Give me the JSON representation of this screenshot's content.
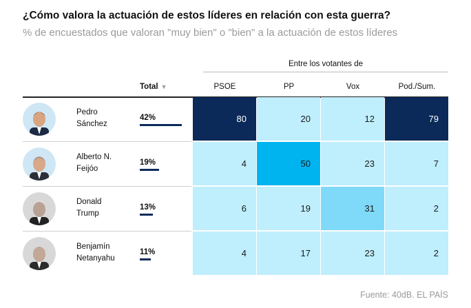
{
  "title": "¿Cómo valora la actuación de estos líderes en relación con esta guerra?",
  "subtitle": "% de encuestados que valoran \"muy bien\" o \"bien\" a la actuación de estos líderes",
  "group_label": "Entre los votantes de",
  "source": "Fuente: 40dB. EL PAÍS",
  "colors": {
    "dark_navy": "#0b2a5a",
    "bar": "#0b2a5a",
    "scale_low": "#bfeefd",
    "scale_mid": "#7fd9f8",
    "scale_high": "#00b4ef"
  },
  "chart_data": {
    "type": "table",
    "title": "¿Cómo valora la actuación de estos líderes en relación con esta guerra?",
    "subtitle": "% de encuestados que valoran \"muy bien\" o \"bien\" a la actuación de estos líderes",
    "total_header": "Total",
    "sort_icon": "sort-down-icon",
    "columns": [
      "PSOE",
      "PP",
      "Vox",
      "Pod./Sum."
    ],
    "rows": [
      {
        "name_line1": "Pedro",
        "name_line2": "Sánchez",
        "total": 42,
        "total_label": "42%",
        "values": [
          80,
          20,
          12,
          79
        ]
      },
      {
        "name_line1": "Alberto N.",
        "name_line2": "Feijóo",
        "total": 19,
        "total_label": "19%",
        "values": [
          4,
          50,
          23,
          7
        ]
      },
      {
        "name_line1": "Donald",
        "name_line2": "Trump",
        "total": 13,
        "total_label": "13%",
        "values": [
          6,
          19,
          31,
          2
        ]
      },
      {
        "name_line1": "Benjamín",
        "name_line2": "Netanyahu",
        "total": 11,
        "total_label": "11%",
        "values": [
          4,
          17,
          23,
          2
        ]
      }
    ]
  }
}
